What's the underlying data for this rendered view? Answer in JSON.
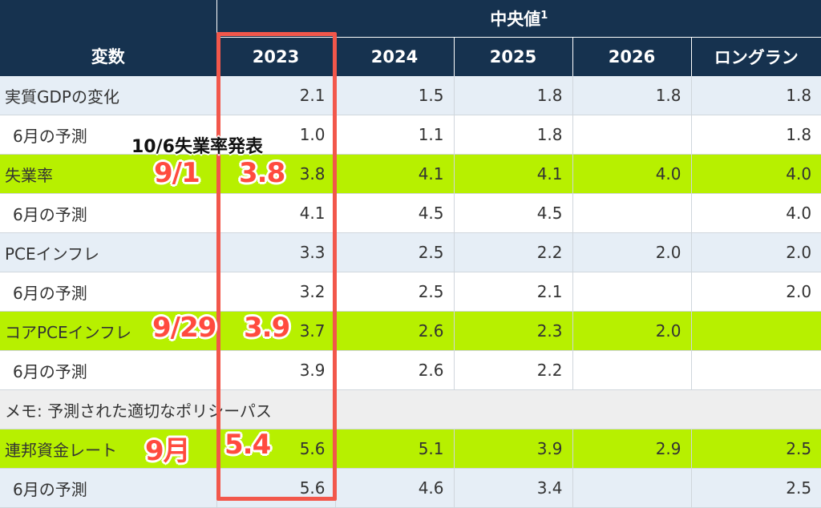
{
  "header": {
    "variable": "変数",
    "median": "中央値",
    "median_sup": "1",
    "years": [
      "2023",
      "2024",
      "2025",
      "2026",
      "ロングラン"
    ]
  },
  "rows": [
    {
      "label": "実質GDPの変化",
      "values": [
        "2.1",
        "1.5",
        "1.8",
        "1.8",
        "1.8"
      ]
    },
    {
      "label": "6月の予測",
      "values": [
        "1.0",
        "1.1",
        "1.8",
        "",
        "1.8"
      ]
    },
    {
      "label": "失業率",
      "values": [
        "3.8",
        "4.1",
        "4.1",
        "4.0",
        "4.0"
      ]
    },
    {
      "label": "6月の予測",
      "values": [
        "4.1",
        "4.5",
        "4.5",
        "",
        "4.0"
      ]
    },
    {
      "label": "PCEインフレ",
      "values": [
        "3.3",
        "2.5",
        "2.2",
        "2.0",
        "2.0"
      ]
    },
    {
      "label": "6月の予測",
      "values": [
        "3.2",
        "2.5",
        "2.1",
        "",
        "2.0"
      ]
    },
    {
      "label": "コアPCEインフレ",
      "values": [
        "3.7",
        "2.6",
        "2.3",
        "2.0",
        ""
      ]
    },
    {
      "label": "6月の予測",
      "values": [
        "3.9",
        "2.6",
        "2.2",
        "",
        ""
      ]
    },
    {
      "label": "メモ: 予測された適切なポリシーパス"
    },
    {
      "label": "連邦資金レート",
      "values": [
        "5.6",
        "5.1",
        "3.9",
        "2.9",
        "2.5"
      ]
    },
    {
      "label": "6月の予測",
      "values": [
        "5.6",
        "4.6",
        "3.4",
        "",
        "2.5"
      ]
    }
  ],
  "annotations": {
    "release_note": "10/6失業率発表",
    "unemp_date": "9/1",
    "unemp_value": "3.8",
    "core_date": "9/29",
    "core_value": "3.9",
    "fed_date": "9月",
    "fed_value": "5.4"
  },
  "colors": {
    "header_bg": "#16324f",
    "highlight_green": "#b7f000",
    "row_blue": "#e6eef6",
    "annotation_red": "#ff4b3e",
    "box_red": "#f2574b"
  }
}
